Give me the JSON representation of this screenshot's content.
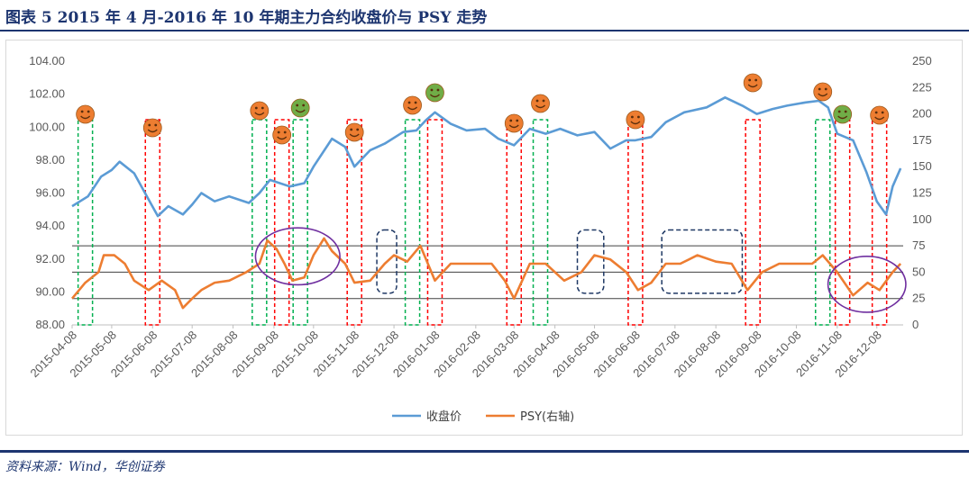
{
  "title": "图表 5   2015 年 4 月-2016 年 10 年期主力合约收盘价与 PSY 走势",
  "source": "资料来源：Wind，华创证券",
  "colors": {
    "price": "#5b9bd5",
    "psy": "#ed7d31",
    "frame": "#1d3570",
    "red_marker": "#ff0000",
    "green_marker": "#00b050",
    "navy_box": "#1f3864",
    "purple_ellipse": "#7030a0",
    "face_orange": "#ed7d31",
    "face_green": "#70ad47"
  },
  "chart_data": {
    "type": "line",
    "x_tick_labels": [
      "2015-04-08",
      "2015-05-08",
      "2015-06-08",
      "2015-07-08",
      "2015-08-08",
      "2015-09-08",
      "2015-10-08",
      "2015-11-08",
      "2015-12-08",
      "2016-01-08",
      "2016-02-08",
      "2016-03-08",
      "2016-04-08",
      "2016-05-08",
      "2016-06-08",
      "2016-07-08",
      "2016-08-08",
      "2016-09-08",
      "2016-10-08",
      "2016-11-08",
      "2016-12-08"
    ],
    "y_left": {
      "min": 88,
      "max": 104,
      "ticks": [
        "88.00",
        "90.00",
        "92.00",
        "94.00",
        "96.00",
        "98.00",
        "100.00",
        "102.00",
        "104.00"
      ]
    },
    "y_right": {
      "min": 0,
      "max": 250,
      "ticks": [
        "0",
        "25",
        "50",
        "75",
        "100",
        "125",
        "150",
        "175",
        "200",
        "225",
        "250"
      ]
    },
    "reference_lines_psy": [
      75,
      50,
      25
    ],
    "series": [
      {
        "name": "收盘价",
        "axis": "left",
        "points": [
          [
            "2015-04-08",
            95.2
          ],
          [
            "2015-04-20",
            95.8
          ],
          [
            "2015-04-30",
            97.0
          ],
          [
            "2015-05-08",
            97.4
          ],
          [
            "2015-05-14",
            97.9
          ],
          [
            "2015-05-25",
            97.2
          ],
          [
            "2015-06-05",
            95.6
          ],
          [
            "2015-06-12",
            94.6
          ],
          [
            "2015-06-20",
            95.2
          ],
          [
            "2015-07-01",
            94.7
          ],
          [
            "2015-07-08",
            95.3
          ],
          [
            "2015-07-15",
            96.0
          ],
          [
            "2015-07-25",
            95.5
          ],
          [
            "2015-08-05",
            95.8
          ],
          [
            "2015-08-20",
            95.4
          ],
          [
            "2015-08-28",
            96.0
          ],
          [
            "2015-09-05",
            96.8
          ],
          [
            "2015-09-20",
            96.4
          ],
          [
            "2015-10-01",
            96.6
          ],
          [
            "2015-10-08",
            97.6
          ],
          [
            "2015-10-22",
            99.3
          ],
          [
            "2015-11-01",
            98.8
          ],
          [
            "2015-11-08",
            97.6
          ],
          [
            "2015-11-20",
            98.6
          ],
          [
            "2015-12-01",
            99.0
          ],
          [
            "2015-12-15",
            99.7
          ],
          [
            "2015-12-25",
            99.8
          ],
          [
            "2016-01-01",
            100.4
          ],
          [
            "2016-01-08",
            100.9
          ],
          [
            "2016-01-20",
            100.2
          ],
          [
            "2016-02-01",
            99.8
          ],
          [
            "2016-02-15",
            99.9
          ],
          [
            "2016-02-25",
            99.3
          ],
          [
            "2016-03-08",
            98.9
          ],
          [
            "2016-03-20",
            99.9
          ],
          [
            "2016-04-01",
            99.6
          ],
          [
            "2016-04-12",
            99.9
          ],
          [
            "2016-04-25",
            99.5
          ],
          [
            "2016-05-08",
            99.7
          ],
          [
            "2016-05-20",
            98.7
          ],
          [
            "2016-06-01",
            99.2
          ],
          [
            "2016-06-08",
            99.2
          ],
          [
            "2016-06-20",
            99.4
          ],
          [
            "2016-07-01",
            100.3
          ],
          [
            "2016-07-15",
            100.9
          ],
          [
            "2016-08-01",
            101.2
          ],
          [
            "2016-08-15",
            101.8
          ],
          [
            "2016-08-28",
            101.3
          ],
          [
            "2016-09-08",
            100.8
          ],
          [
            "2016-09-20",
            101.1
          ],
          [
            "2016-10-01",
            101.3
          ],
          [
            "2016-10-15",
            101.5
          ],
          [
            "2016-10-25",
            101.6
          ],
          [
            "2016-11-01",
            101.2
          ],
          [
            "2016-11-08",
            99.6
          ],
          [
            "2016-11-20",
            99.2
          ],
          [
            "2016-11-30",
            97.3
          ],
          [
            "2016-12-08",
            95.5
          ],
          [
            "2016-12-15",
            94.7
          ],
          [
            "2016-12-20",
            96.4
          ],
          [
            "2016-12-26",
            97.5
          ]
        ]
      },
      {
        "name": "PSY(右轴)",
        "axis": "right",
        "points": [
          [
            "2015-04-08",
            25
          ],
          [
            "2015-04-18",
            40
          ],
          [
            "2015-04-28",
            50
          ],
          [
            "2015-05-02",
            66
          ],
          [
            "2015-05-10",
            66
          ],
          [
            "2015-05-18",
            58
          ],
          [
            "2015-05-25",
            42
          ],
          [
            "2015-06-05",
            33
          ],
          [
            "2015-06-15",
            42
          ],
          [
            "2015-06-25",
            33
          ],
          [
            "2015-07-01",
            16
          ],
          [
            "2015-07-08",
            25
          ],
          [
            "2015-07-15",
            33
          ],
          [
            "2015-07-25",
            40
          ],
          [
            "2015-08-05",
            42
          ],
          [
            "2015-08-18",
            50
          ],
          [
            "2015-08-28",
            58
          ],
          [
            "2015-09-03",
            80
          ],
          [
            "2015-09-10",
            72
          ],
          [
            "2015-09-16",
            58
          ],
          [
            "2015-09-22",
            42
          ],
          [
            "2015-10-01",
            45
          ],
          [
            "2015-10-08",
            66
          ],
          [
            "2015-10-16",
            82
          ],
          [
            "2015-10-22",
            70
          ],
          [
            "2015-11-01",
            58
          ],
          [
            "2015-11-08",
            40
          ],
          [
            "2015-11-20",
            42
          ],
          [
            "2015-12-01",
            58
          ],
          [
            "2015-12-08",
            66
          ],
          [
            "2015-12-18",
            60
          ],
          [
            "2015-12-28",
            75
          ],
          [
            "2016-01-08",
            42
          ],
          [
            "2016-01-20",
            58
          ],
          [
            "2016-02-01",
            58
          ],
          [
            "2016-02-20",
            58
          ],
          [
            "2016-03-01",
            42
          ],
          [
            "2016-03-08",
            25
          ],
          [
            "2016-03-20",
            58
          ],
          [
            "2016-04-01",
            58
          ],
          [
            "2016-04-15",
            42
          ],
          [
            "2016-04-28",
            50
          ],
          [
            "2016-05-08",
            66
          ],
          [
            "2016-05-20",
            62
          ],
          [
            "2016-06-01",
            50
          ],
          [
            "2016-06-10",
            33
          ],
          [
            "2016-06-20",
            40
          ],
          [
            "2016-07-01",
            58
          ],
          [
            "2016-07-12",
            58
          ],
          [
            "2016-07-25",
            66
          ],
          [
            "2016-08-08",
            60
          ],
          [
            "2016-08-20",
            58
          ],
          [
            "2016-09-01",
            33
          ],
          [
            "2016-09-12",
            50
          ],
          [
            "2016-09-25",
            58
          ],
          [
            "2016-10-08",
            58
          ],
          [
            "2016-10-20",
            58
          ],
          [
            "2016-10-28",
            66
          ],
          [
            "2016-11-08",
            50
          ],
          [
            "2016-11-20",
            28
          ],
          [
            "2016-12-01",
            40
          ],
          [
            "2016-12-10",
            33
          ],
          [
            "2016-12-20",
            50
          ],
          [
            "2016-12-26",
            58
          ]
        ]
      }
    ],
    "markers": [
      {
        "date": "2015-04-18",
        "face": "orange",
        "line": "green"
      },
      {
        "date": "2015-06-08",
        "face": "orange",
        "line": "red"
      },
      {
        "date": "2015-08-28",
        "face": "orange",
        "line": "green"
      },
      {
        "date": "2015-09-14",
        "face": "orange",
        "line": "red"
      },
      {
        "date": "2015-09-28",
        "face": "green",
        "line": "green"
      },
      {
        "date": "2015-11-08",
        "face": "orange",
        "line": "red"
      },
      {
        "date": "2015-12-22",
        "face": "orange",
        "line": "green"
      },
      {
        "date": "2016-01-08",
        "face": "green",
        "line": "red"
      },
      {
        "date": "2016-03-08",
        "face": "orange",
        "line": "red"
      },
      {
        "date": "2016-03-28",
        "face": "orange",
        "line": "green"
      },
      {
        "date": "2016-06-08",
        "face": "orange",
        "line": "red"
      },
      {
        "date": "2016-09-05",
        "face": "orange",
        "line": "red"
      },
      {
        "date": "2016-10-28",
        "face": "orange",
        "line": "green"
      },
      {
        "date": "2016-11-12",
        "face": "green",
        "line": "red"
      },
      {
        "date": "2016-12-10",
        "face": "orange",
        "line": "red"
      }
    ],
    "boxes": [
      {
        "from": "2015-11-25",
        "to": "2015-12-10",
        "psy_from": 30,
        "psy_to": 90
      },
      {
        "from": "2016-04-25",
        "to": "2016-05-15",
        "psy_from": 30,
        "psy_to": 90
      },
      {
        "from": "2016-06-28",
        "to": "2016-08-28",
        "psy_from": 30,
        "psy_to": 90
      }
    ],
    "ellipses": [
      {
        "from": "2015-08-25",
        "to": "2015-10-28",
        "psy_from": 38,
        "psy_to": 92
      },
      {
        "from": "2016-11-01",
        "to": "2016-12-30",
        "psy_from": 12,
        "psy_to": 65
      }
    ],
    "legend_position": "bottom-center"
  }
}
